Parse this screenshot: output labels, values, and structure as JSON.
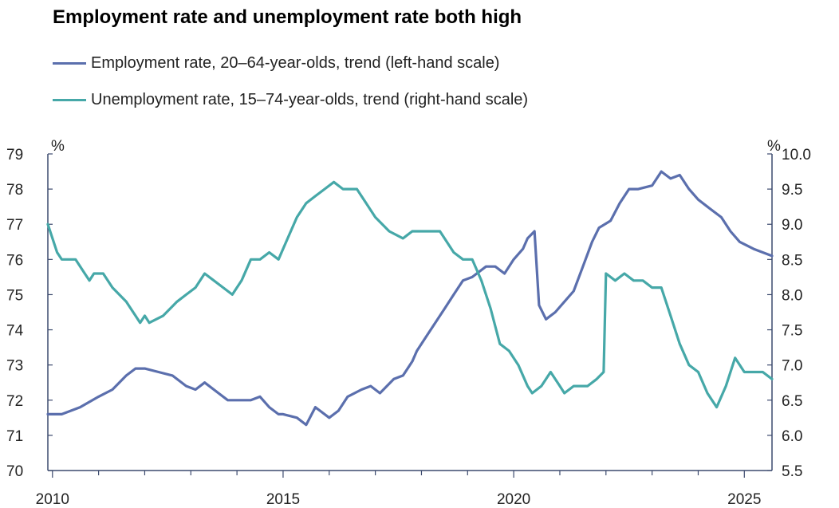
{
  "chart_data": {
    "type": "line",
    "title": "Employment rate and unemployment rate both high",
    "left_unit": "%",
    "right_unit": "%",
    "xlabel": "",
    "ylabel": "",
    "x_ticks": [
      "2010",
      "2015",
      "2020",
      "2025"
    ],
    "x_range": [
      2009.9,
      2025.6
    ],
    "y_left_range": [
      70,
      79
    ],
    "y_left_ticks": [
      "70",
      "71",
      "72",
      "73",
      "74",
      "75",
      "76",
      "77",
      "78",
      "79"
    ],
    "y_right_range": [
      5.5,
      10.0
    ],
    "y_right_ticks": [
      "5.5",
      "6.0",
      "6.5",
      "7.0",
      "7.5",
      "8.0",
      "8.5",
      "9.0",
      "9.5",
      "10.0"
    ],
    "grid": false,
    "legend_position": "top-left",
    "series": [
      {
        "name": "Employment rate, 20–64-year-olds, trend (left-hand scale)",
        "axis": "left",
        "color": "#5b6fad",
        "points": [
          [
            2009.9,
            71.6
          ],
          [
            2010.2,
            71.6
          ],
          [
            2010.6,
            71.8
          ],
          [
            2011.0,
            72.1
          ],
          [
            2011.3,
            72.3
          ],
          [
            2011.6,
            72.7
          ],
          [
            2011.8,
            72.9
          ],
          [
            2012.0,
            72.9
          ],
          [
            2012.3,
            72.8
          ],
          [
            2012.6,
            72.7
          ],
          [
            2012.9,
            72.4
          ],
          [
            2013.1,
            72.3
          ],
          [
            2013.3,
            72.5
          ],
          [
            2013.6,
            72.2
          ],
          [
            2013.8,
            72.0
          ],
          [
            2014.0,
            72.0
          ],
          [
            2014.3,
            72.0
          ],
          [
            2014.5,
            72.1
          ],
          [
            2014.7,
            71.8
          ],
          [
            2014.9,
            71.6
          ],
          [
            2015.0,
            71.6
          ],
          [
            2015.3,
            71.5
          ],
          [
            2015.5,
            71.3
          ],
          [
            2015.7,
            71.8
          ],
          [
            2016.0,
            71.5
          ],
          [
            2016.2,
            71.7
          ],
          [
            2016.4,
            72.1
          ],
          [
            2016.7,
            72.3
          ],
          [
            2016.9,
            72.4
          ],
          [
            2017.1,
            72.2
          ],
          [
            2017.4,
            72.6
          ],
          [
            2017.6,
            72.7
          ],
          [
            2017.8,
            73.1
          ],
          [
            2017.9,
            73.4
          ],
          [
            2018.1,
            73.8
          ],
          [
            2018.3,
            74.2
          ],
          [
            2018.5,
            74.6
          ],
          [
            2018.7,
            75.0
          ],
          [
            2018.9,
            75.4
          ],
          [
            2019.1,
            75.5
          ],
          [
            2019.4,
            75.8
          ],
          [
            2019.6,
            75.8
          ],
          [
            2019.8,
            75.6
          ],
          [
            2020.0,
            76.0
          ],
          [
            2020.2,
            76.3
          ],
          [
            2020.3,
            76.6
          ],
          [
            2020.45,
            76.8
          ],
          [
            2020.55,
            74.7
          ],
          [
            2020.7,
            74.3
          ],
          [
            2020.9,
            74.5
          ],
          [
            2021.1,
            74.8
          ],
          [
            2021.3,
            75.1
          ],
          [
            2021.5,
            75.8
          ],
          [
            2021.7,
            76.5
          ],
          [
            2021.85,
            76.9
          ],
          [
            2022.1,
            77.1
          ],
          [
            2022.3,
            77.6
          ],
          [
            2022.5,
            78.0
          ],
          [
            2022.7,
            78.0
          ],
          [
            2023.0,
            78.1
          ],
          [
            2023.2,
            78.5
          ],
          [
            2023.4,
            78.3
          ],
          [
            2023.6,
            78.4
          ],
          [
            2023.8,
            78.0
          ],
          [
            2024.0,
            77.7
          ],
          [
            2024.2,
            77.5
          ],
          [
            2024.5,
            77.2
          ],
          [
            2024.7,
            76.8
          ],
          [
            2024.9,
            76.5
          ],
          [
            2025.2,
            76.3
          ],
          [
            2025.4,
            76.2
          ],
          [
            2025.6,
            76.1
          ]
        ]
      },
      {
        "name": "Unemployment rate, 15–74-year-olds, trend (right-hand scale)",
        "axis": "right",
        "color": "#46a8a8",
        "points": [
          [
            2009.9,
            9.0
          ],
          [
            2010.0,
            8.8
          ],
          [
            2010.1,
            8.6
          ],
          [
            2010.2,
            8.5
          ],
          [
            2010.5,
            8.5
          ],
          [
            2010.7,
            8.3
          ],
          [
            2010.8,
            8.2
          ],
          [
            2010.9,
            8.3
          ],
          [
            2011.1,
            8.3
          ],
          [
            2011.3,
            8.1
          ],
          [
            2011.6,
            7.9
          ],
          [
            2011.8,
            7.7
          ],
          [
            2011.9,
            7.6
          ],
          [
            2012.0,
            7.7
          ],
          [
            2012.1,
            7.6
          ],
          [
            2012.4,
            7.7
          ],
          [
            2012.7,
            7.9
          ],
          [
            2012.9,
            8.0
          ],
          [
            2013.1,
            8.1
          ],
          [
            2013.3,
            8.3
          ],
          [
            2013.5,
            8.2
          ],
          [
            2013.7,
            8.1
          ],
          [
            2013.9,
            8.0
          ],
          [
            2014.1,
            8.2
          ],
          [
            2014.3,
            8.5
          ],
          [
            2014.5,
            8.5
          ],
          [
            2014.7,
            8.6
          ],
          [
            2014.9,
            8.5
          ],
          [
            2015.1,
            8.8
          ],
          [
            2015.3,
            9.1
          ],
          [
            2015.5,
            9.3
          ],
          [
            2015.7,
            9.4
          ],
          [
            2015.9,
            9.5
          ],
          [
            2016.1,
            9.6
          ],
          [
            2016.3,
            9.5
          ],
          [
            2016.6,
            9.5
          ],
          [
            2016.8,
            9.3
          ],
          [
            2017.0,
            9.1
          ],
          [
            2017.3,
            8.9
          ],
          [
            2017.6,
            8.8
          ],
          [
            2017.8,
            8.9
          ],
          [
            2018.1,
            8.9
          ],
          [
            2018.4,
            8.9
          ],
          [
            2018.7,
            8.6
          ],
          [
            2018.9,
            8.5
          ],
          [
            2019.1,
            8.5
          ],
          [
            2019.3,
            8.2
          ],
          [
            2019.5,
            7.8
          ],
          [
            2019.7,
            7.3
          ],
          [
            2019.9,
            7.2
          ],
          [
            2020.1,
            7.0
          ],
          [
            2020.3,
            6.7
          ],
          [
            2020.4,
            6.6
          ],
          [
            2020.6,
            6.7
          ],
          [
            2020.8,
            6.9
          ],
          [
            2021.0,
            6.7
          ],
          [
            2021.1,
            6.6
          ],
          [
            2021.3,
            6.7
          ],
          [
            2021.6,
            6.7
          ],
          [
            2021.8,
            6.8
          ],
          [
            2021.95,
            6.9
          ],
          [
            2022.0,
            8.3
          ],
          [
            2022.2,
            8.2
          ],
          [
            2022.4,
            8.3
          ],
          [
            2022.6,
            8.2
          ],
          [
            2022.8,
            8.2
          ],
          [
            2023.0,
            8.1
          ],
          [
            2023.2,
            8.1
          ],
          [
            2023.4,
            7.7
          ],
          [
            2023.6,
            7.3
          ],
          [
            2023.8,
            7.0
          ],
          [
            2024.0,
            6.9
          ],
          [
            2024.2,
            6.6
          ],
          [
            2024.4,
            6.4
          ],
          [
            2024.6,
            6.7
          ],
          [
            2024.8,
            7.1
          ],
          [
            2025.0,
            6.9
          ],
          [
            2025.2,
            6.9
          ],
          [
            2025.4,
            6.9
          ],
          [
            2025.6,
            6.8
          ]
        ]
      }
    ]
  }
}
